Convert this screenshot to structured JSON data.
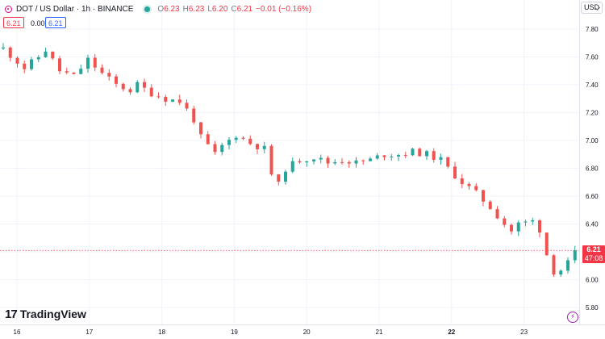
{
  "header": {
    "symbol_title": "DOT / US Dollar · 1h · BINANCE",
    "open_key": "O",
    "open": "6.23",
    "high_key": "H",
    "high": "6.23",
    "low_key": "L",
    "low": "6.20",
    "close_key": "C",
    "close": "6.21",
    "change": "−0.01 (−0.16%)"
  },
  "quote": {
    "ask": "6.21",
    "spread": "0.00",
    "bid": "6.21"
  },
  "currency": "USD",
  "price_tag": {
    "price": "6.21",
    "countdown": "47:08"
  },
  "brand": {
    "name": "TradingView",
    "mark": "17"
  },
  "colors": {
    "up": "#26a69a",
    "down": "#ef5350",
    "grid": "#f0f3fa",
    "price_line": "#f23645"
  },
  "chart_data": {
    "type": "candlestick",
    "title": "DOT / US Dollar · 1h · BINANCE",
    "timeframe": "1h",
    "x_tick_labels": [
      "16",
      "17",
      "18",
      "19",
      "20",
      "21",
      "22",
      "23"
    ],
    "y_tick_labels": [
      "5.80",
      "6.00",
      "6.20",
      "6.40",
      "6.60",
      "6.80",
      "7.00",
      "7.20",
      "7.40",
      "7.60",
      "7.80"
    ],
    "ylim": [
      5.74,
      7.88
    ],
    "last_price": 6.21,
    "grid": true,
    "trend_path": [
      [
        0,
        7.66
      ],
      [
        3,
        7.52
      ],
      [
        5,
        7.6
      ],
      [
        6,
        7.65
      ],
      [
        8,
        7.5
      ],
      [
        10,
        7.46
      ],
      [
        12,
        7.58
      ],
      [
        14,
        7.48
      ],
      [
        16,
        7.4
      ],
      [
        18,
        7.36
      ],
      [
        19,
        7.4
      ],
      [
        21,
        7.34
      ],
      [
        23,
        7.3
      ],
      [
        25,
        7.28
      ],
      [
        26,
        7.22
      ],
      [
        27,
        7.15
      ],
      [
        28,
        7.02
      ],
      [
        30,
        6.9
      ],
      [
        31,
        6.96
      ],
      [
        33,
        7.04
      ],
      [
        35,
        6.98
      ],
      [
        37,
        6.94
      ],
      [
        38,
        6.76
      ],
      [
        39,
        6.68
      ],
      [
        40,
        6.8
      ],
      [
        42,
        6.86
      ],
      [
        44,
        6.88
      ],
      [
        46,
        6.84
      ],
      [
        48,
        6.86
      ],
      [
        50,
        6.84
      ],
      [
        52,
        6.86
      ],
      [
        54,
        6.9
      ],
      [
        56,
        6.9
      ],
      [
        58,
        6.92
      ],
      [
        60,
        6.9
      ],
      [
        62,
        6.86
      ],
      [
        63,
        6.8
      ],
      [
        65,
        6.7
      ],
      [
        67,
        6.62
      ],
      [
        69,
        6.52
      ],
      [
        71,
        6.4
      ],
      [
        72,
        6.35
      ],
      [
        73,
        6.4
      ],
      [
        75,
        6.42
      ],
      [
        76,
        6.36
      ],
      [
        77,
        6.18
      ],
      [
        78,
        6.06
      ],
      [
        79,
        6.07
      ],
      [
        80,
        6.12
      ],
      [
        80.6,
        6.21
      ]
    ]
  }
}
